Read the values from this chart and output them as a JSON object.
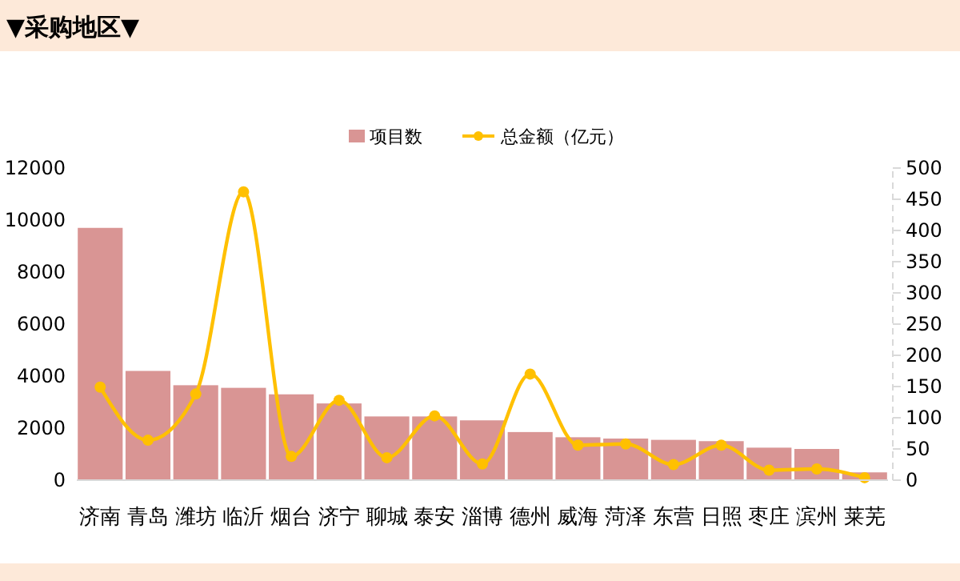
{
  "chart_data": {
    "type": "bar",
    "title": "▼采购地区▼",
    "categories": [
      "济南",
      "青岛",
      "潍坊",
      "临沂",
      "烟台",
      "济宁",
      "聊城",
      "泰安",
      "淄博",
      "德州",
      "威海",
      "菏泽",
      "东营",
      "日照",
      "枣庄",
      "滨州",
      "莱芜"
    ],
    "series": [
      {
        "name": "项目数",
        "color": "#d99594",
        "values": [
          9700,
          4200,
          3650,
          3550,
          3300,
          2950,
          2450,
          2450,
          2300,
          1850,
          1650,
          1600,
          1550,
          1500,
          1250,
          1200,
          300
        ]
      },
      {
        "name": "总金额（亿元）",
        "type": "line",
        "axis": "y2",
        "color": "#ffc000",
        "marker": "circle",
        "values": [
          149,
          64,
          138,
          462,
          38,
          128,
          36,
          103,
          26,
          170,
          56,
          58,
          25,
          56,
          16,
          18,
          4
        ]
      }
    ],
    "ylim": [
      0,
      12000
    ],
    "yticks": [
      0,
      2000,
      4000,
      6000,
      8000,
      10000,
      12000
    ],
    "y2lim": [
      0,
      500
    ],
    "y2ticks": [
      0,
      50,
      100,
      150,
      200,
      250,
      300,
      350,
      400,
      450,
      500
    ],
    "legend": "top",
    "grid": false
  }
}
